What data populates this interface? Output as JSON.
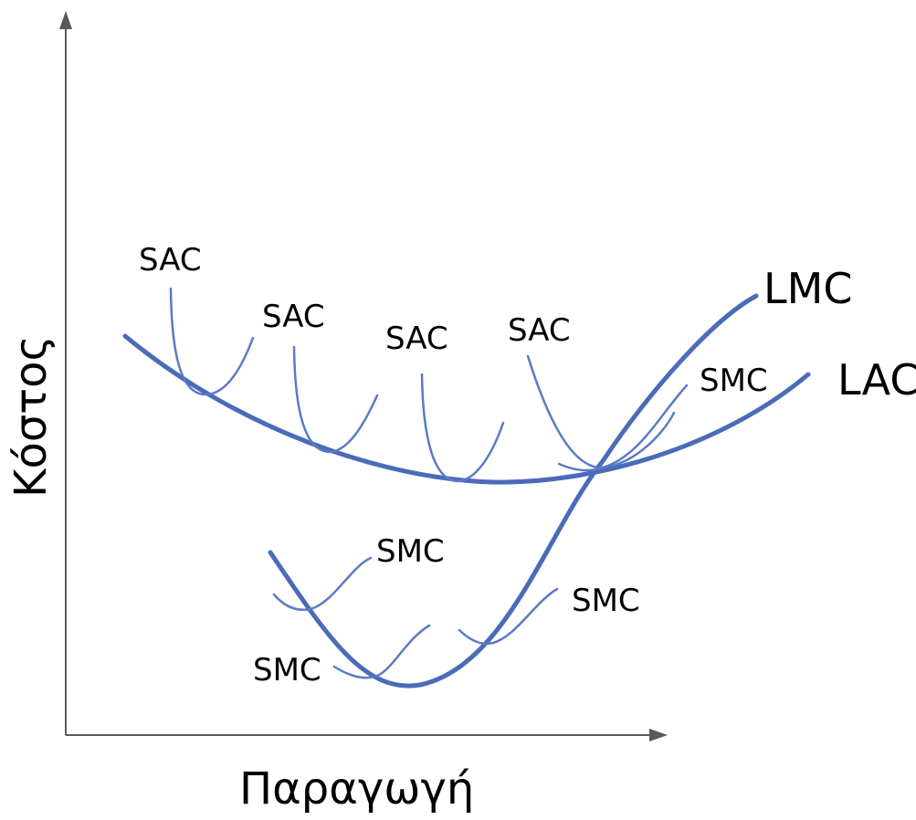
{
  "axes": {
    "x_title": "Παραγωγή",
    "y_title": "Κόστος"
  },
  "curves": {
    "lmc": "LMC",
    "lac": "LAC",
    "sac_label": "SAC",
    "smc_label": "SMC"
  },
  "colors": {
    "curve": "#4a6cb8",
    "axis": "#595959"
  }
}
